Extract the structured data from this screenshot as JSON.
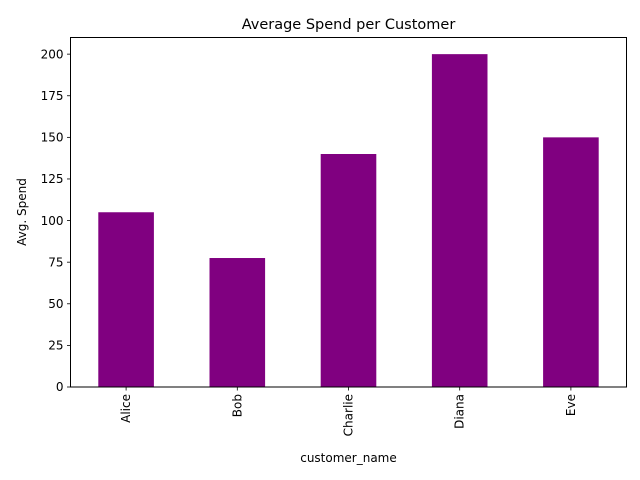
{
  "chart_data": {
    "type": "bar",
    "title": "Average Spend per Customer",
    "xlabel": "customer_name",
    "ylabel": "Avg. Spend",
    "categories": [
      "Alice",
      "Bob",
      "Charlie",
      "Diana",
      "Eve"
    ],
    "values": [
      105,
      77.5,
      140,
      200,
      150
    ],
    "ylim": [
      0,
      210
    ],
    "yticks": [
      0,
      25,
      50,
      75,
      100,
      125,
      150,
      175,
      200
    ],
    "bar_color": "#800080",
    "grid": false,
    "legend": "none"
  }
}
